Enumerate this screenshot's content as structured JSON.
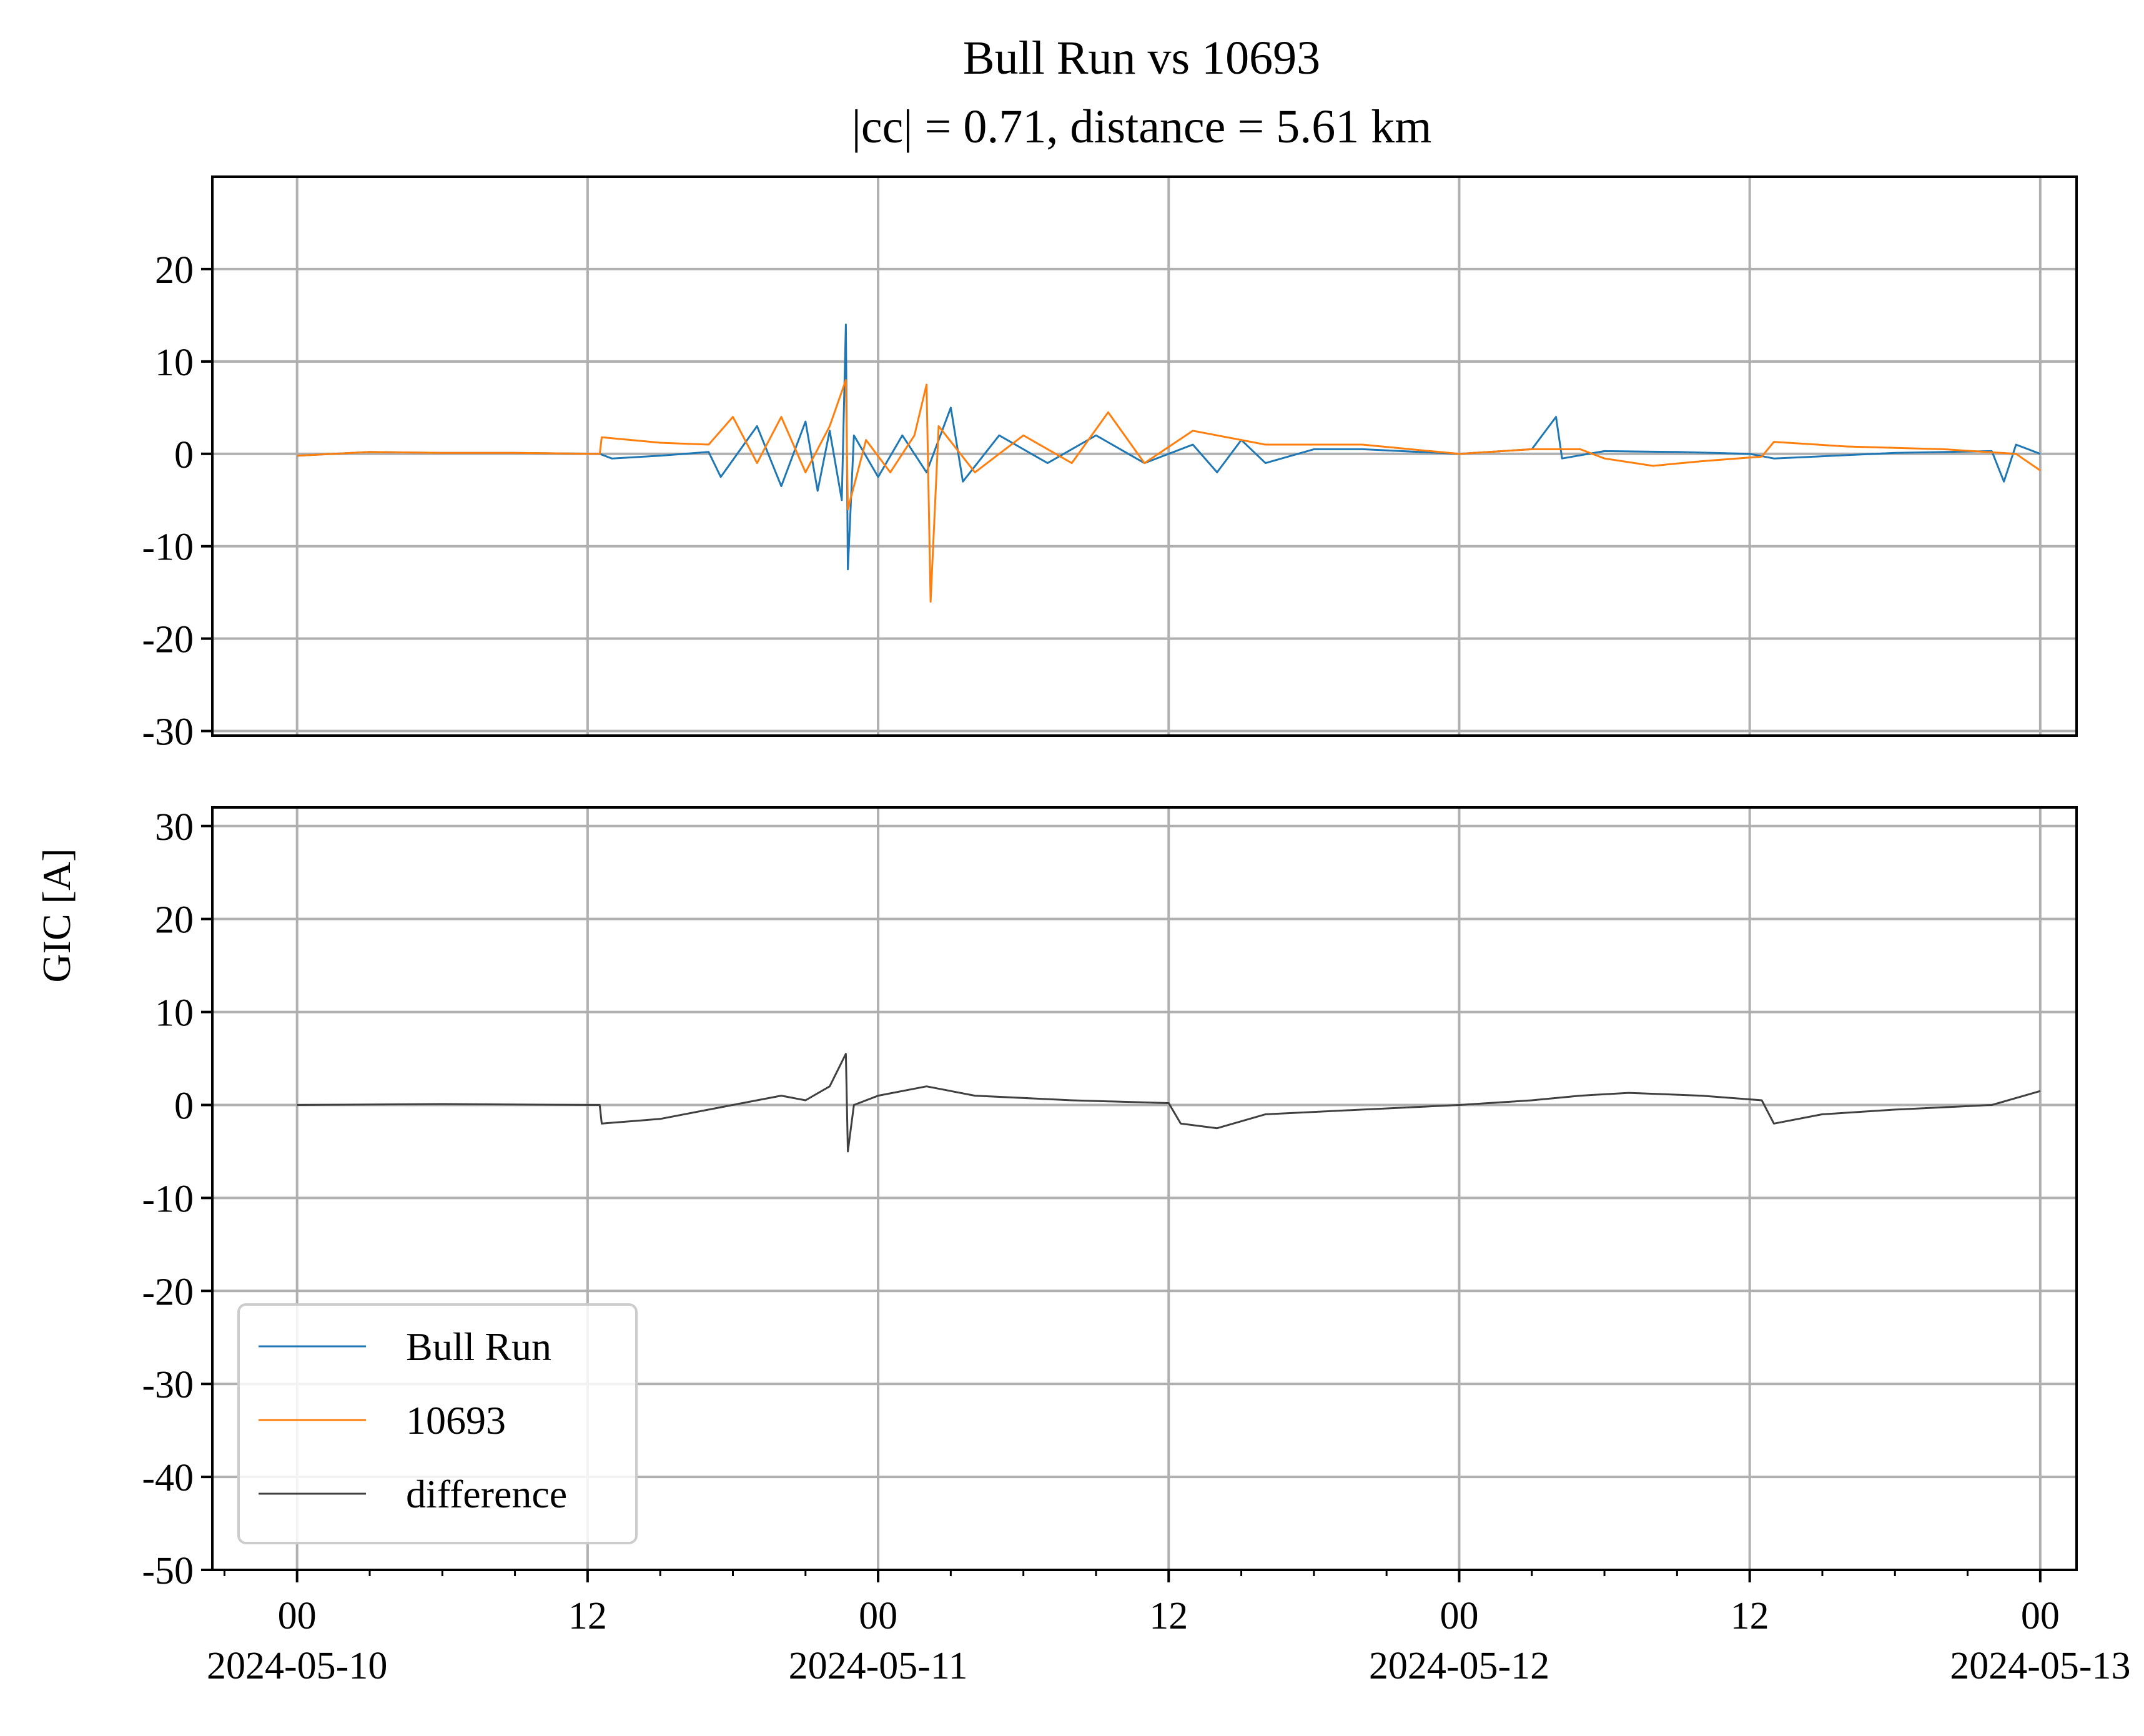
{
  "colors": {
    "series_a": "#1f77b4",
    "series_b": "#ff7f0e",
    "difference": "#404040",
    "grid": "#b0b0b0",
    "axis": "#000000"
  },
  "chart_data": [
    {
      "type": "line",
      "panel": "top",
      "title": "Bull Run vs 10693",
      "subtitle": "|cc| = 0.71, distance = 5.61 km",
      "xlim": [
        "2024-05-09T20:30",
        "2024-05-13T01:30"
      ],
      "ylim": [
        -30.5,
        30
      ],
      "yticks": [
        20,
        10,
        0,
        -10,
        -20,
        -30
      ],
      "ytick_labels": [
        "20",
        "10",
        "0",
        "-10",
        "-20",
        "-30"
      ],
      "grid": true,
      "series": [
        {
          "name": "Bull Run",
          "color": "#1f77b4",
          "points": [
            [
              "2024-05-10T00:00",
              -0.2
            ],
            [
              "2024-05-10T03:00",
              0.2
            ],
            [
              "2024-05-10T06:00",
              0.1
            ],
            [
              "2024-05-10T09:00",
              0.1
            ],
            [
              "2024-05-10T12:30",
              0.0
            ],
            [
              "2024-05-10T13:00",
              -0.5
            ],
            [
              "2024-05-10T15:00",
              -0.2
            ],
            [
              "2024-05-10T17:00",
              0.2
            ],
            [
              "2024-05-10T17:30",
              -2.5
            ],
            [
              "2024-05-10T19:00",
              3.0
            ],
            [
              "2024-05-10T20:00",
              -3.5
            ],
            [
              "2024-05-10T21:00",
              3.5
            ],
            [
              "2024-05-10T21:30",
              -4.0
            ],
            [
              "2024-05-10T22:00",
              2.5
            ],
            [
              "2024-05-10T22:30",
              -5.0
            ],
            [
              "2024-05-10T22:40",
              14.0
            ],
            [
              "2024-05-10T22:45",
              -12.5
            ],
            [
              "2024-05-10T23:00",
              2.0
            ],
            [
              "2024-05-11T00:00",
              -2.5
            ],
            [
              "2024-05-11T01:00",
              2.0
            ],
            [
              "2024-05-11T02:00",
              -2.0
            ],
            [
              "2024-05-11T03:00",
              5.0
            ],
            [
              "2024-05-11T03:30",
              -3.0
            ],
            [
              "2024-05-11T05:00",
              2.0
            ],
            [
              "2024-05-11T07:00",
              -1.0
            ],
            [
              "2024-05-11T09:00",
              2.0
            ],
            [
              "2024-05-11T11:00",
              -1.0
            ],
            [
              "2024-05-11T13:00",
              1.0
            ],
            [
              "2024-05-11T14:00",
              -2.0
            ],
            [
              "2024-05-11T15:00",
              1.5
            ],
            [
              "2024-05-11T16:00",
              -1.0
            ],
            [
              "2024-05-11T18:00",
              0.5
            ],
            [
              "2024-05-11T20:00",
              0.5
            ],
            [
              "2024-05-12T00:00",
              0.0
            ],
            [
              "2024-05-12T03:00",
              0.5
            ],
            [
              "2024-05-12T04:00",
              4.0
            ],
            [
              "2024-05-12T04:15",
              -0.5
            ],
            [
              "2024-05-12T06:00",
              0.3
            ],
            [
              "2024-05-12T09:00",
              0.2
            ],
            [
              "2024-05-12T12:00",
              0.0
            ],
            [
              "2024-05-12T13:00",
              -0.5
            ],
            [
              "2024-05-12T18:00",
              0.1
            ],
            [
              "2024-05-12T22:00",
              0.3
            ],
            [
              "2024-05-12T22:30",
              -3.0
            ],
            [
              "2024-05-12T23:00",
              1.0
            ],
            [
              "2024-05-13T00:00",
              0.0
            ]
          ]
        },
        {
          "name": "10693",
          "color": "#ff7f0e",
          "points": [
            [
              "2024-05-10T00:00",
              -0.2
            ],
            [
              "2024-05-10T03:00",
              0.2
            ],
            [
              "2024-05-10T06:00",
              0.1
            ],
            [
              "2024-05-10T09:00",
              0.1
            ],
            [
              "2024-05-10T12:30",
              0.0
            ],
            [
              "2024-05-10T12:35",
              1.8
            ],
            [
              "2024-05-10T15:00",
              1.2
            ],
            [
              "2024-05-10T17:00",
              1.0
            ],
            [
              "2024-05-10T18:00",
              4.0
            ],
            [
              "2024-05-10T19:00",
              -1.0
            ],
            [
              "2024-05-10T20:00",
              4.0
            ],
            [
              "2024-05-10T21:00",
              -2.0
            ],
            [
              "2024-05-10T22:00",
              3.0
            ],
            [
              "2024-05-10T22:40",
              8.0
            ],
            [
              "2024-05-10T22:45",
              -6.0
            ],
            [
              "2024-05-10T23:30",
              1.5
            ],
            [
              "2024-05-11T00:30",
              -2.0
            ],
            [
              "2024-05-11T01:30",
              2.0
            ],
            [
              "2024-05-11T02:00",
              7.5
            ],
            [
              "2024-05-11T02:10",
              -16.0
            ],
            [
              "2024-05-11T02:30",
              3.0
            ],
            [
              "2024-05-11T04:00",
              -2.0
            ],
            [
              "2024-05-11T06:00",
              2.0
            ],
            [
              "2024-05-11T08:00",
              -1.0
            ],
            [
              "2024-05-11T09:30",
              4.5
            ],
            [
              "2024-05-11T11:00",
              -1.0
            ],
            [
              "2024-05-11T13:00",
              2.5
            ],
            [
              "2024-05-11T16:00",
              1.0
            ],
            [
              "2024-05-11T20:00",
              1.0
            ],
            [
              "2024-05-12T00:00",
              0.0
            ],
            [
              "2024-05-12T03:00",
              0.5
            ],
            [
              "2024-05-12T05:00",
              0.5
            ],
            [
              "2024-05-12T06:00",
              -0.5
            ],
            [
              "2024-05-12T08:00",
              -1.3
            ],
            [
              "2024-05-12T10:00",
              -0.8
            ],
            [
              "2024-05-12T12:30",
              -0.3
            ],
            [
              "2024-05-12T13:00",
              1.3
            ],
            [
              "2024-05-12T16:00",
              0.8
            ],
            [
              "2024-05-12T20:00",
              0.5
            ],
            [
              "2024-05-12T23:00",
              0.0
            ],
            [
              "2024-05-13T00:00",
              -1.8
            ]
          ]
        }
      ]
    },
    {
      "type": "line",
      "panel": "bottom",
      "xlabel": "",
      "xlim": [
        "2024-05-09T20:30",
        "2024-05-13T01:30"
      ],
      "ylim": [
        -50,
        32
      ],
      "yticks": [
        30,
        20,
        10,
        0,
        -10,
        -20,
        -30,
        -40,
        -50
      ],
      "ytick_labels": [
        "30",
        "20",
        "10",
        "0",
        "-10",
        "-20",
        "-30",
        "-40",
        "-50"
      ],
      "xticks": [
        "2024-05-10T00:00",
        "2024-05-10T12:00",
        "2024-05-11T00:00",
        "2024-05-11T12:00",
        "2024-05-12T00:00",
        "2024-05-12T12:00",
        "2024-05-13T00:00"
      ],
      "xtick_labels": [
        [
          "00",
          "2024-05-10"
        ],
        [
          "12",
          ""
        ],
        [
          "00",
          "2024-05-11"
        ],
        [
          "12",
          ""
        ],
        [
          "00",
          "2024-05-12"
        ],
        [
          "12",
          ""
        ],
        [
          "00",
          "2024-05-13"
        ]
      ],
      "grid": true,
      "series": [
        {
          "name": "difference",
          "color": "#404040",
          "points": [
            [
              "2024-05-10T00:00",
              0.0
            ],
            [
              "2024-05-10T06:00",
              0.1
            ],
            [
              "2024-05-10T12:30",
              0.0
            ],
            [
              "2024-05-10T12:35",
              -2.0
            ],
            [
              "2024-05-10T15:00",
              -1.5
            ],
            [
              "2024-05-10T17:00",
              -0.5
            ],
            [
              "2024-05-10T19:00",
              0.5
            ],
            [
              "2024-05-10T20:00",
              1.0
            ],
            [
              "2024-05-10T21:00",
              0.5
            ],
            [
              "2024-05-10T22:00",
              2.0
            ],
            [
              "2024-05-10T22:40",
              5.5
            ],
            [
              "2024-05-10T22:45",
              -5.0
            ],
            [
              "2024-05-10T23:00",
              0.0
            ],
            [
              "2024-05-11T00:00",
              1.0
            ],
            [
              "2024-05-11T02:00",
              2.0
            ],
            [
              "2024-05-11T04:00",
              1.0
            ],
            [
              "2024-05-11T08:00",
              0.5
            ],
            [
              "2024-05-11T12:00",
              0.2
            ],
            [
              "2024-05-11T12:30",
              -2.0
            ],
            [
              "2024-05-11T14:00",
              -2.5
            ],
            [
              "2024-05-11T16:00",
              -1.0
            ],
            [
              "2024-05-11T20:00",
              -0.5
            ],
            [
              "2024-05-12T00:00",
              0.0
            ],
            [
              "2024-05-12T03:00",
              0.5
            ],
            [
              "2024-05-12T05:00",
              1.0
            ],
            [
              "2024-05-12T07:00",
              1.3
            ],
            [
              "2024-05-12T10:00",
              1.0
            ],
            [
              "2024-05-12T12:30",
              0.5
            ],
            [
              "2024-05-12T13:00",
              -2.0
            ],
            [
              "2024-05-12T15:00",
              -1.0
            ],
            [
              "2024-05-12T18:00",
              -0.5
            ],
            [
              "2024-05-12T22:00",
              0.0
            ],
            [
              "2024-05-13T00:00",
              1.5
            ]
          ]
        }
      ],
      "legend": {
        "placement": "lower-left",
        "entries": [
          "Bull Run",
          "10693",
          "difference"
        ]
      }
    }
  ],
  "ylabel": "GIC [A]"
}
